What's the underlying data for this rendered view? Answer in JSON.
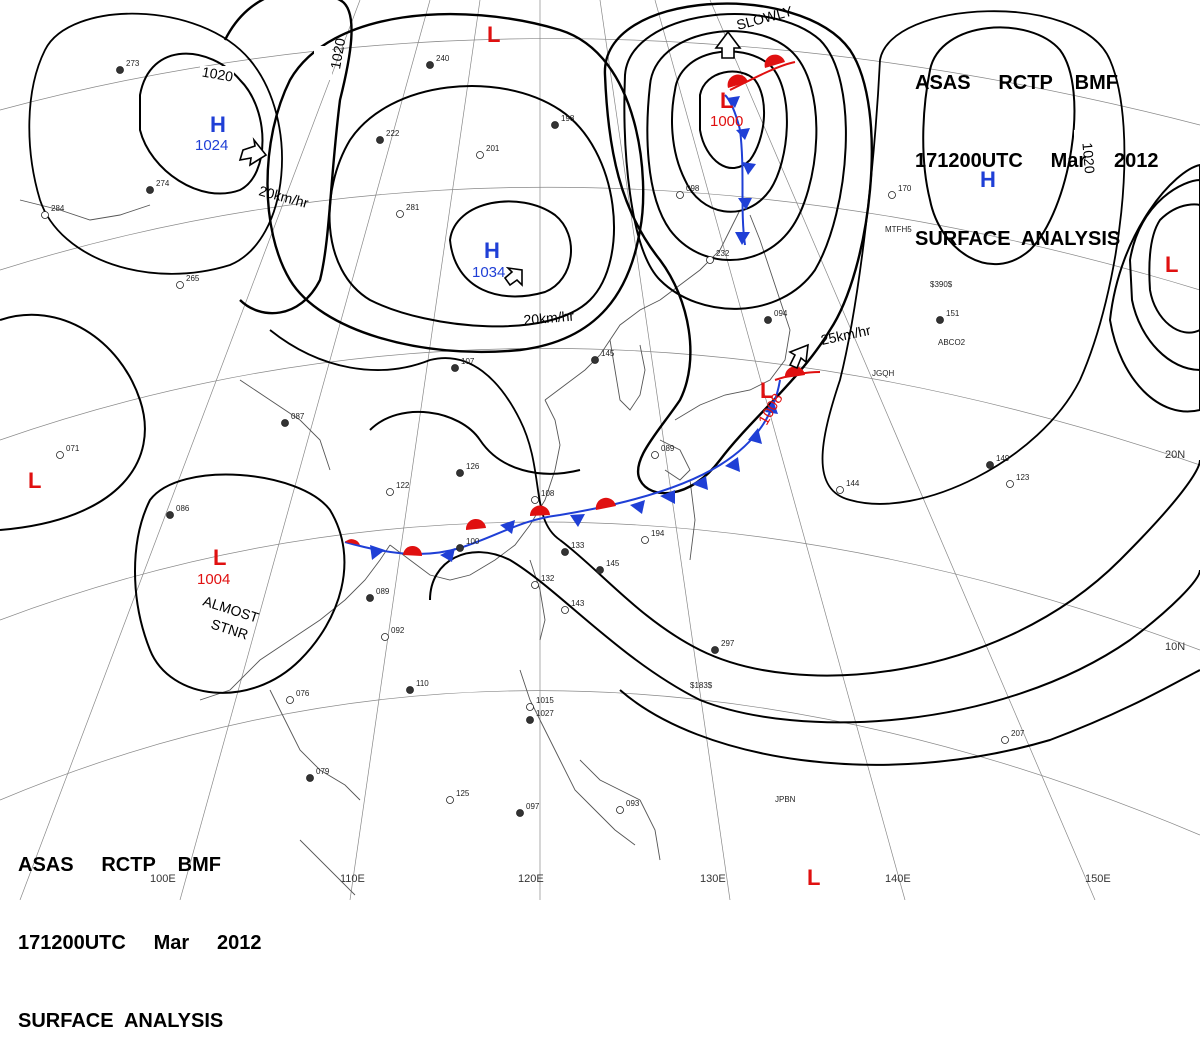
{
  "header": {
    "agency_line": "ASAS     RCTP    BMF",
    "time_line": "171200UTC     Mar     2012",
    "title_line": "SURFACE  ANALYSIS"
  },
  "grid_labels": {
    "lon": [
      "110E",
      "120E",
      "130E",
      "140E",
      "150E",
      "100E"
    ],
    "lat": [
      "20N",
      "10N"
    ]
  },
  "isobar_labels": [
    "1020",
    "1020",
    "1020"
  ],
  "pressure_systems": [
    {
      "type": "H",
      "pressure": "1024",
      "color": "#1f3fd6"
    },
    {
      "type": "H",
      "pressure": "1034",
      "color": "#1f3fd6"
    },
    {
      "type": "H",
      "pressure": "",
      "color": "#1f3fd6"
    },
    {
      "type": "L",
      "pressure": "1000",
      "color": "#e01010"
    },
    {
      "type": "L",
      "pressure": "1004",
      "color": "#e01010"
    },
    {
      "type": "L",
      "pressure": "1008",
      "color": "#e01010"
    },
    {
      "type": "L",
      "pressure": "",
      "color": "#e01010"
    },
    {
      "type": "L",
      "pressure": "",
      "color": "#e01010"
    },
    {
      "type": "L",
      "pressure": "",
      "color": "#e01010"
    },
    {
      "type": "L",
      "pressure": "",
      "color": "#e01010"
    }
  ],
  "movement_labels": [
    "20km/hr",
    "20km/hr",
    "25km/hr",
    "SLOWLY",
    "ALMOST",
    "STNR"
  ],
  "station_samples": [
    "1027",
    "1015",
    "089",
    "092",
    "110",
    "076",
    "079",
    "125",
    "097",
    "093",
    "145",
    "143",
    "133",
    "132",
    "100",
    "108",
    "126",
    "122",
    "107",
    "089",
    "087",
    "071",
    "086",
    "098",
    "094",
    "123",
    "149",
    "170",
    "151",
    "207",
    "198",
    "201",
    "240",
    "281",
    "222",
    "265",
    "274",
    "284",
    "273",
    "232",
    "297",
    "144",
    "145",
    "194"
  ],
  "ship_ids": [
    "MTFH5",
    "JGQH",
    "ABCO2",
    "JPBN",
    "$390$",
    "$183$"
  ],
  "colors": {
    "high": "#1f3fd6",
    "low": "#e01010",
    "cold_front": "#1f3fd6",
    "warm_front": "#e01010",
    "isobar": "#000000",
    "grid": "#888888",
    "coast": "#555555"
  }
}
